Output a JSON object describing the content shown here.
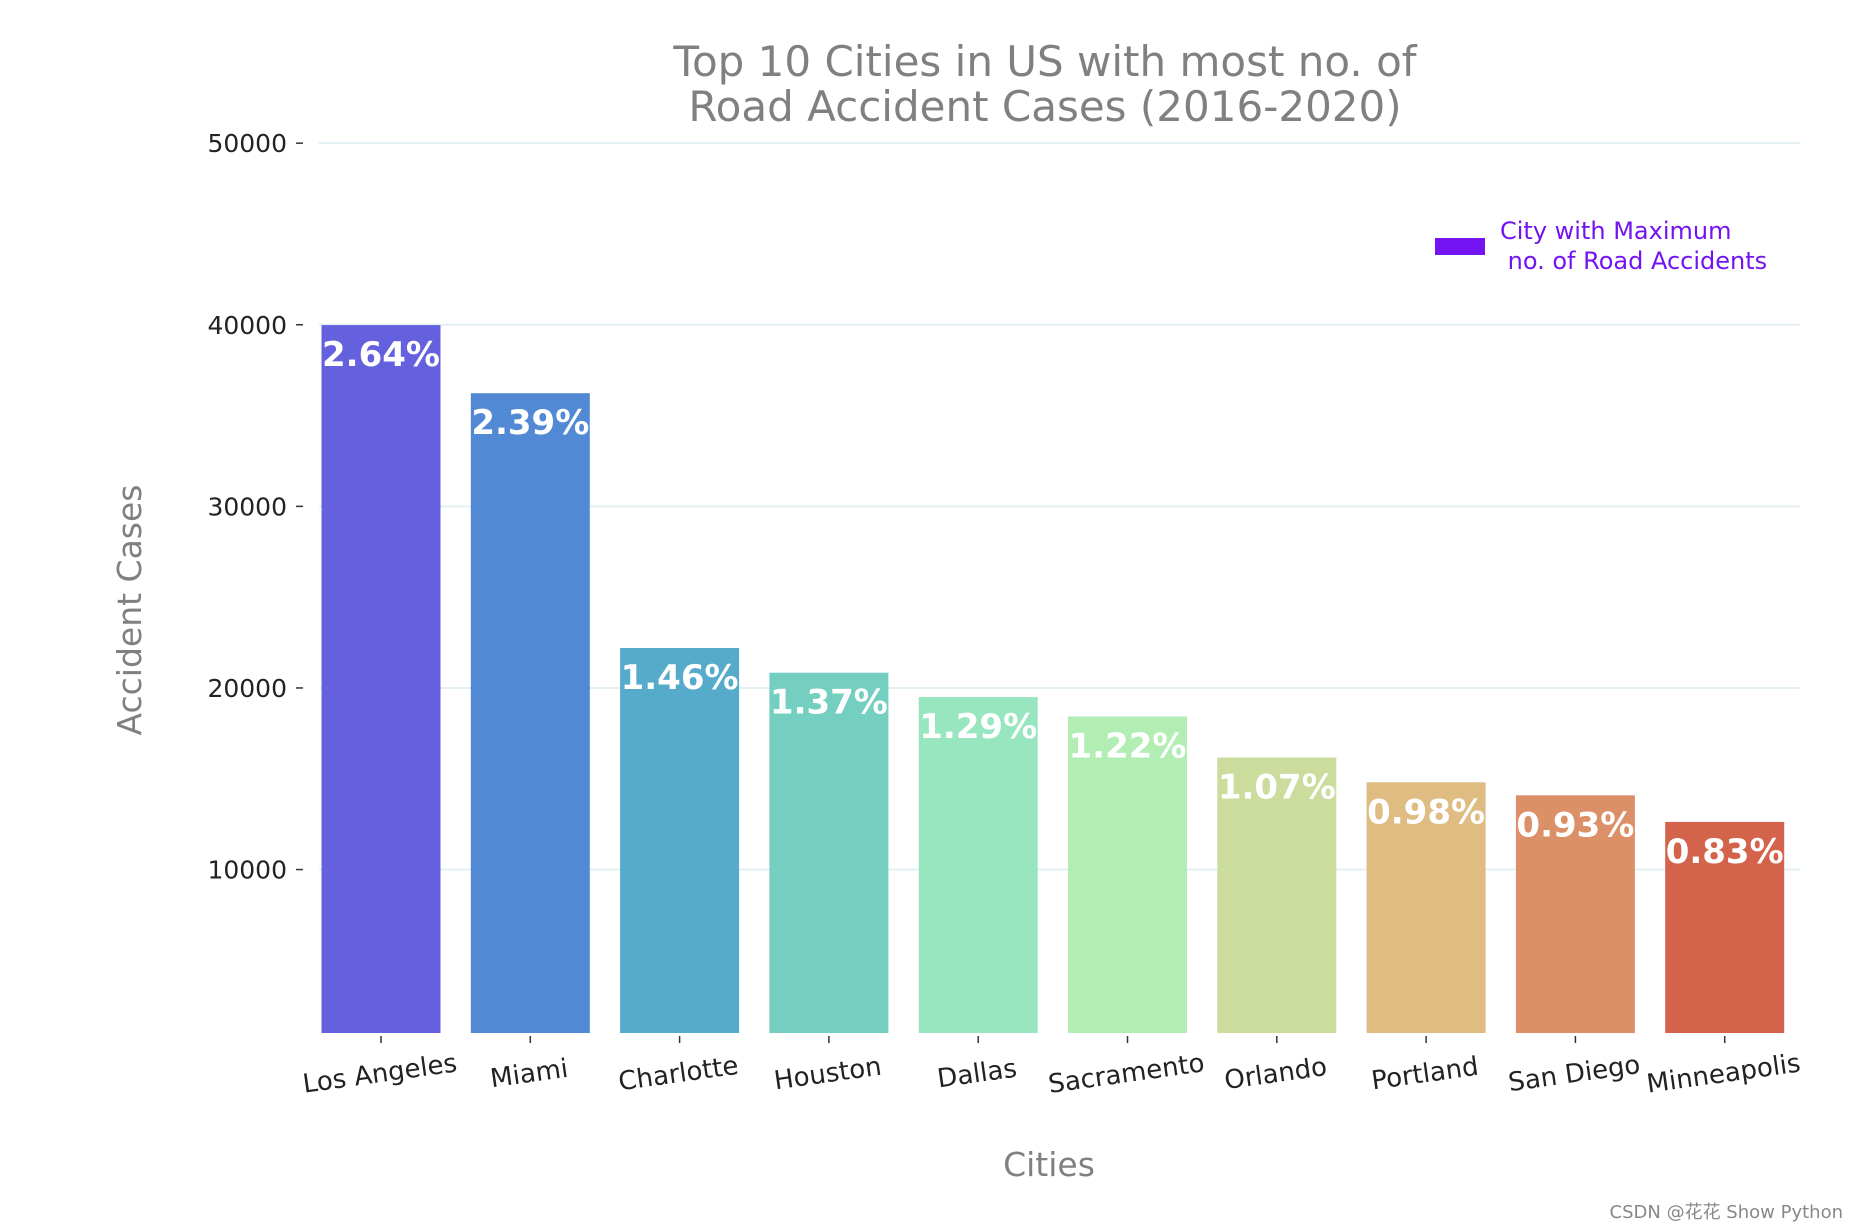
{
  "chart_data": {
    "type": "bar",
    "title_lines": [
      "Top 10 Cities in US with most no. of",
      "Road Accident Cases (2016-2020)"
    ],
    "xlabel": "Cities",
    "ylabel": "Accident Cases",
    "ylim": [
      1000,
      51000
    ],
    "yticks": [
      10000,
      20000,
      30000,
      40000,
      50000
    ],
    "grid": "horizontal",
    "categories": [
      "Los Angeles",
      "Miami",
      "Charlotte",
      "Houston",
      "Dallas",
      "Sacramento",
      "Orlando",
      "Portland",
      "San Diego",
      "Minneapolis"
    ],
    "values": [
      39984,
      36233,
      22203,
      20843,
      19497,
      18431,
      16169,
      14805,
      14090,
      12624
    ],
    "labels": [
      "2.64%",
      "2.39%",
      "1.46%",
      "1.37%",
      "1.29%",
      "1.22%",
      "1.07%",
      "0.98%",
      "0.93%",
      "0.83%"
    ],
    "colors": [
      "#6560de",
      "#5289d4",
      "#56abcb",
      "#74cfc1",
      "#97e6bf",
      "#b2edb4",
      "#cbdc9d",
      "#debc82",
      "#dc9067",
      "#d4634b"
    ],
    "legend": {
      "label": "City with Maximum\n no. of Road Accidents",
      "color": "#7413f2",
      "placement": "top-right"
    }
  },
  "watermark": "CSDN @花花 Show Python"
}
